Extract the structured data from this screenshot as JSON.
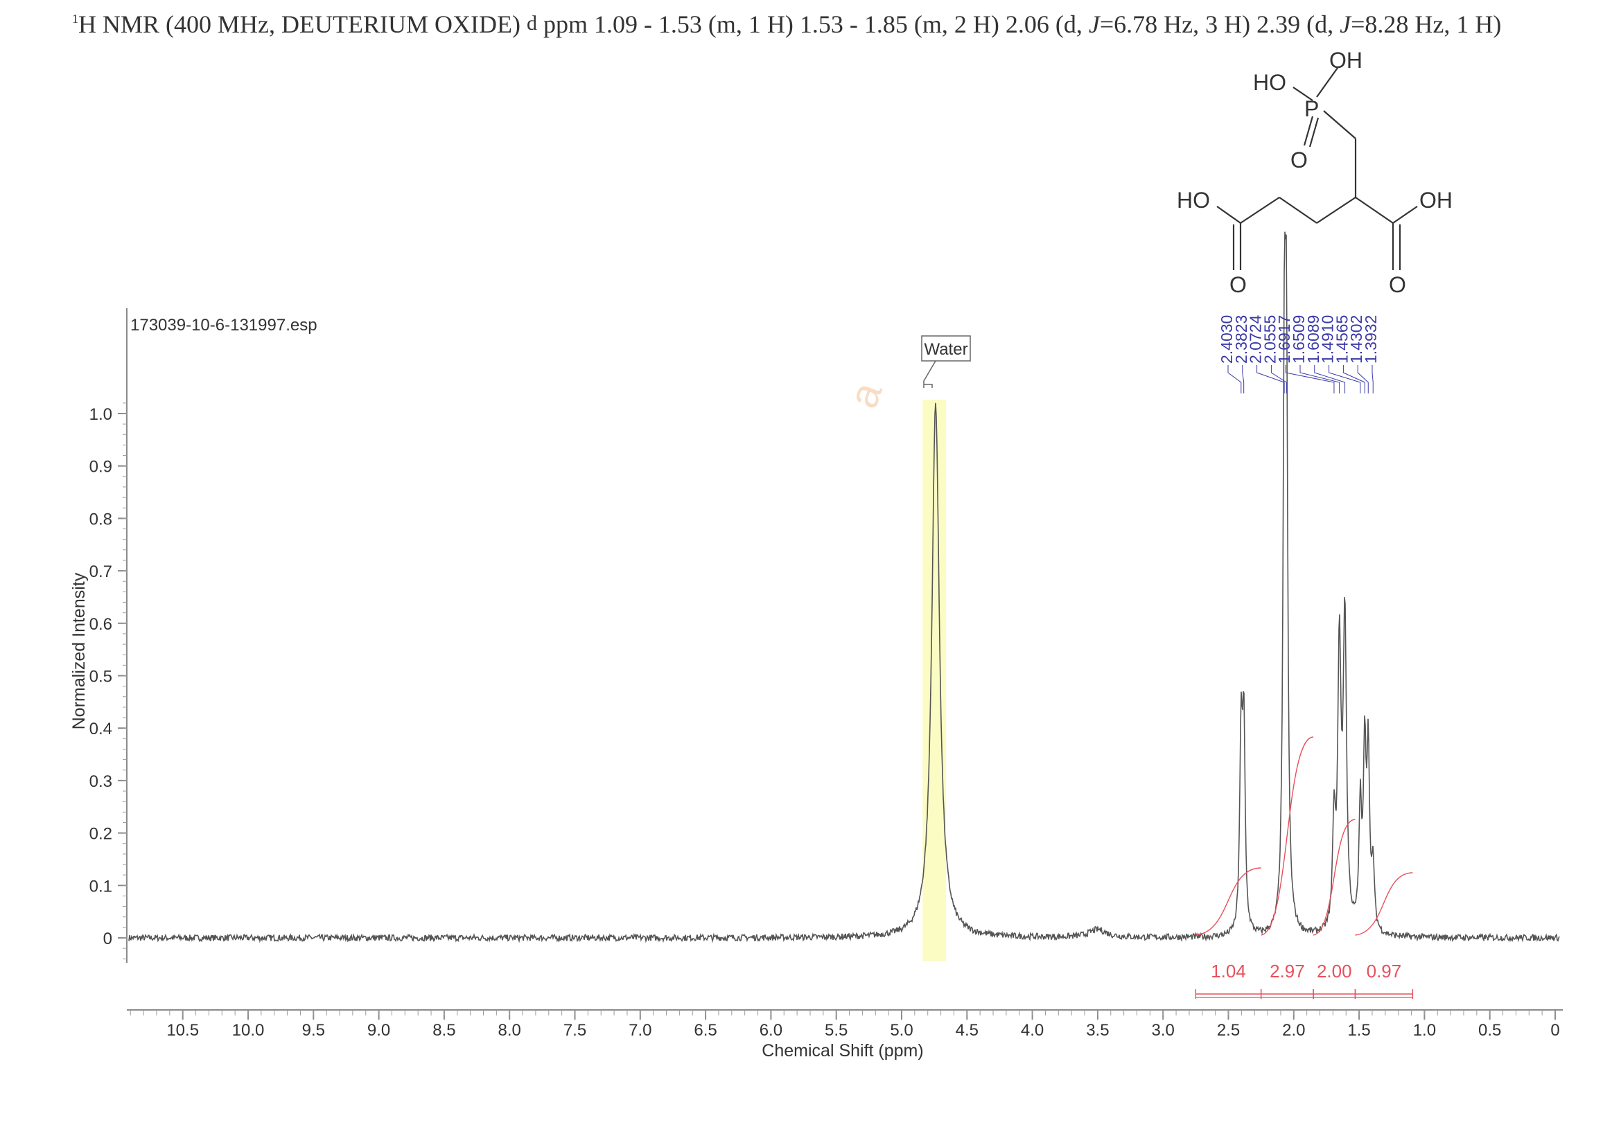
{
  "title": {
    "nucleus_sup": "1",
    "nucleus": "H NMR (400 MHz, DEUTERIUM OXIDE)",
    "delta_symbol": "d",
    "pre_j1": "ppm 1.09 - 1.53 (m, 1 H) 1.53 - 1.85 (m, 2 H) 2.06 (d, ",
    "j1_label": "J",
    "j1_value": "=6.78 Hz, 3 H) 2.39 (d, ",
    "j2_label": "J",
    "j2_value": "=8.28 Hz, 1 H)"
  },
  "structure": {
    "atom_labels": [
      "HO",
      "OH",
      "P",
      "O",
      "HO",
      "OH",
      "O",
      "O"
    ]
  },
  "colors": {
    "spectrum": "#555555",
    "integral": "#e8505b",
    "peak_label": "#3a3aa8",
    "solvent_highlight": "#fbfbc4",
    "axis": "#8a8a8a",
    "watermark": "#f4c6a0"
  },
  "chart_data": {
    "type": "line",
    "file_label": "173039-10-6-131997.esp",
    "xlabel": "Chemical Shift (ppm)",
    "ylabel": "Normalized Intensity",
    "x_reversed": true,
    "xlim": [
      10.95,
      -0.05
    ],
    "ylim": [
      -0.04,
      1.04
    ],
    "xticks": [
      "10.5",
      "10.0",
      "9.5",
      "9.0",
      "8.5",
      "8.0",
      "7.5",
      "7.0",
      "6.5",
      "6.0",
      "5.5",
      "5.0",
      "4.5",
      "4.0",
      "3.5",
      "3.0",
      "2.5",
      "2.0",
      "1.5",
      "1.0",
      "0.5",
      "0"
    ],
    "yticks": [
      "1.0",
      "0.9",
      "0.8",
      "0.7",
      "0.6",
      "0.5",
      "0.4",
      "0.3",
      "0.2",
      "0.1",
      "0"
    ],
    "solvent": {
      "label": "Water",
      "center": 4.76,
      "range": [
        4.84,
        4.66
      ]
    },
    "peaks": [
      {
        "ppm": 4.74,
        "height": 1.02,
        "width": 0.035
      },
      {
        "ppm": 3.5,
        "height": 0.015,
        "width": 0.08
      },
      {
        "ppm": 2.403,
        "height": 0.37,
        "width": 0.012
      },
      {
        "ppm": 2.382,
        "height": 0.38,
        "width": 0.012
      },
      {
        "ppm": 2.072,
        "height": 0.95,
        "width": 0.012
      },
      {
        "ppm": 2.056,
        "height": 0.97,
        "width": 0.012
      },
      {
        "ppm": 1.692,
        "height": 0.2,
        "width": 0.012
      },
      {
        "ppm": 1.651,
        "height": 0.53,
        "width": 0.015
      },
      {
        "ppm": 1.609,
        "height": 0.59,
        "width": 0.015
      },
      {
        "ppm": 1.491,
        "height": 0.23,
        "width": 0.012
      },
      {
        "ppm": 1.457,
        "height": 0.34,
        "width": 0.012
      },
      {
        "ppm": 1.43,
        "height": 0.33,
        "width": 0.012
      },
      {
        "ppm": 1.393,
        "height": 0.12,
        "width": 0.012
      }
    ],
    "peak_labels": [
      "2.4030",
      "2.3823",
      "2.0724",
      "2.0555",
      "1.6917",
      "1.6509",
      "1.6089",
      "1.4910",
      "1.4565",
      "1.4302",
      "1.3932"
    ],
    "integrals": [
      {
        "value": "1.04",
        "from": 2.75,
        "to": 2.25
      },
      {
        "value": "2.97",
        "from": 2.25,
        "to": 1.85
      },
      {
        "value": "2.00",
        "from": 1.85,
        "to": 1.53
      },
      {
        "value": "0.97",
        "from": 1.53,
        "to": 1.09
      }
    ],
    "grid": false
  }
}
